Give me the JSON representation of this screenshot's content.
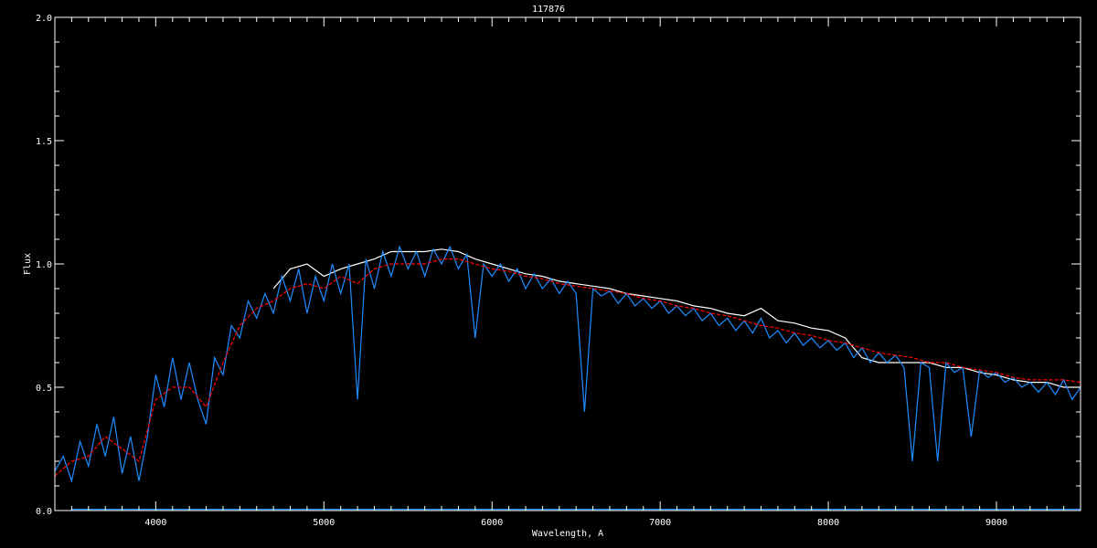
{
  "chart_data": {
    "type": "line",
    "title": "117876",
    "xlabel": "Wavelength, A",
    "ylabel": "Flux",
    "xlim": [
      3400,
      9500
    ],
    "ylim": [
      0.0,
      2.0
    ],
    "x_ticks": [
      4000,
      5000,
      6000,
      7000,
      8000,
      9000
    ],
    "x_tick_labels": [
      "4000",
      "5000",
      "6000",
      "7000",
      "8000",
      "9000"
    ],
    "y_ticks": [
      0.0,
      0.5,
      1.0,
      1.5,
      2.0
    ],
    "y_tick_labels": [
      "0.0",
      "0.5",
      "1.0",
      "1.5",
      "2.0"
    ],
    "x_minor_step": 100,
    "y_minor_step": 0.1,
    "grid": false,
    "background": "#000000",
    "axis_color": "#ffffff",
    "series": [
      {
        "color": "#ffffff",
        "style": "solid",
        "x": [
          4700,
          4800,
          4900,
          5000,
          5100,
          5200,
          5300,
          5400,
          5500,
          5600,
          5700,
          5800,
          5900,
          6000,
          6100,
          6200,
          6300,
          6400,
          6500,
          6600,
          6700,
          6800,
          6900,
          7000,
          7100,
          7200,
          7300,
          7400,
          7500,
          7600,
          7700,
          7800,
          7900,
          8000,
          8100,
          8200,
          8300,
          8400,
          8500,
          8600,
          8700,
          8800,
          8900,
          9000,
          9100,
          9200,
          9300,
          9400,
          9500
        ],
        "y": [
          0.9,
          0.98,
          1.0,
          0.95,
          0.98,
          1.0,
          1.02,
          1.05,
          1.05,
          1.05,
          1.06,
          1.05,
          1.02,
          1.0,
          0.98,
          0.96,
          0.95,
          0.93,
          0.92,
          0.91,
          0.9,
          0.88,
          0.87,
          0.86,
          0.85,
          0.83,
          0.82,
          0.8,
          0.79,
          0.82,
          0.77,
          0.76,
          0.74,
          0.73,
          0.7,
          0.62,
          0.6,
          0.6,
          0.6,
          0.6,
          0.58,
          0.58,
          0.56,
          0.55,
          0.53,
          0.52,
          0.52,
          0.5,
          0.5
        ]
      },
      {
        "color": "#1e8cff",
        "style": "solid",
        "x": [
          3400,
          3450,
          3500,
          3550,
          3600,
          3650,
          3700,
          3750,
          3800,
          3850,
          3900,
          3950,
          4000,
          4050,
          4100,
          4150,
          4200,
          4250,
          4300,
          4350,
          4400,
          4450,
          4500,
          4550,
          4600,
          4650,
          4700,
          4750,
          4800,
          4850,
          4900,
          4950,
          5000,
          5050,
          5100,
          5150,
          5200,
          5250,
          5300,
          5350,
          5400,
          5450,
          5500,
          5550,
          5600,
          5650,
          5700,
          5750,
          5800,
          5850,
          5900,
          5950,
          6000,
          6050,
          6100,
          6150,
          6200,
          6250,
          6300,
          6350,
          6400,
          6450,
          6500,
          6550,
          6600,
          6650,
          6700,
          6750,
          6800,
          6850,
          6900,
          6950,
          7000,
          7050,
          7100,
          7150,
          7200,
          7250,
          7300,
          7350,
          7400,
          7450,
          7500,
          7550,
          7600,
          7650,
          7700,
          7750,
          7800,
          7850,
          7900,
          7950,
          8000,
          8050,
          8100,
          8150,
          8200,
          8250,
          8300,
          8350,
          8400,
          8450,
          8500,
          8550,
          8600,
          8650,
          8700,
          8750,
          8800,
          8850,
          8900,
          8950,
          9000,
          9050,
          9100,
          9150,
          9200,
          9250,
          9300,
          9350,
          9400,
          9450,
          9500
        ],
        "y": [
          0.16,
          0.22,
          0.12,
          0.28,
          0.18,
          0.35,
          0.22,
          0.38,
          0.15,
          0.3,
          0.12,
          0.3,
          0.55,
          0.42,
          0.62,
          0.45,
          0.6,
          0.45,
          0.35,
          0.62,
          0.55,
          0.75,
          0.7,
          0.85,
          0.78,
          0.88,
          0.8,
          0.95,
          0.85,
          0.98,
          0.8,
          0.95,
          0.85,
          1.0,
          0.88,
          1.0,
          0.45,
          1.02,
          0.9,
          1.05,
          0.95,
          1.07,
          0.98,
          1.05,
          0.95,
          1.06,
          1.0,
          1.07,
          0.98,
          1.04,
          0.7,
          1.0,
          0.95,
          1.0,
          0.93,
          0.98,
          0.9,
          0.96,
          0.9,
          0.94,
          0.88,
          0.93,
          0.88,
          0.4,
          0.9,
          0.87,
          0.89,
          0.84,
          0.88,
          0.83,
          0.86,
          0.82,
          0.85,
          0.8,
          0.83,
          0.79,
          0.82,
          0.77,
          0.8,
          0.75,
          0.78,
          0.73,
          0.77,
          0.72,
          0.78,
          0.7,
          0.73,
          0.68,
          0.72,
          0.67,
          0.7,
          0.66,
          0.69,
          0.65,
          0.68,
          0.62,
          0.66,
          0.6,
          0.64,
          0.6,
          0.63,
          0.58,
          0.2,
          0.6,
          0.58,
          0.2,
          0.6,
          0.56,
          0.58,
          0.3,
          0.57,
          0.54,
          0.56,
          0.52,
          0.54,
          0.5,
          0.52,
          0.48,
          0.52,
          0.47,
          0.53,
          0.45,
          0.5
        ]
      },
      {
        "color": "#1e8cff",
        "style": "solid",
        "x": [
          3500,
          9500
        ],
        "y": [
          0.005,
          0.005
        ]
      },
      {
        "color": "#ff0000",
        "style": "dashed",
        "x": [
          3400,
          3500,
          3600,
          3700,
          3800,
          3900,
          4000,
          4100,
          4200,
          4300,
          4400,
          4500,
          4600,
          4700,
          4800,
          4900,
          5000,
          5100,
          5200,
          5300,
          5400,
          5500,
          5600,
          5700,
          5800,
          5900,
          6000,
          6100,
          6200,
          6300,
          6400,
          6500,
          6600,
          6700,
          6800,
          6900,
          7000,
          7100,
          7200,
          7300,
          7400,
          7500,
          7600,
          7700,
          7800,
          7900,
          8000,
          8100,
          8200,
          8300,
          8400,
          8500,
          8600,
          8700,
          8800,
          8900,
          9000,
          9100,
          9200,
          9300,
          9400,
          9500
        ],
        "y": [
          0.14,
          0.2,
          0.22,
          0.3,
          0.25,
          0.2,
          0.45,
          0.5,
          0.5,
          0.42,
          0.6,
          0.75,
          0.82,
          0.85,
          0.9,
          0.92,
          0.9,
          0.95,
          0.92,
          0.98,
          1.0,
          1.0,
          1.0,
          1.02,
          1.02,
          1.0,
          0.98,
          0.97,
          0.95,
          0.94,
          0.92,
          0.91,
          0.9,
          0.89,
          0.88,
          0.86,
          0.85,
          0.83,
          0.82,
          0.8,
          0.79,
          0.77,
          0.75,
          0.74,
          0.72,
          0.71,
          0.69,
          0.68,
          0.66,
          0.64,
          0.63,
          0.62,
          0.6,
          0.6,
          0.58,
          0.57,
          0.56,
          0.54,
          0.53,
          0.53,
          0.53,
          0.52
        ]
      }
    ]
  }
}
